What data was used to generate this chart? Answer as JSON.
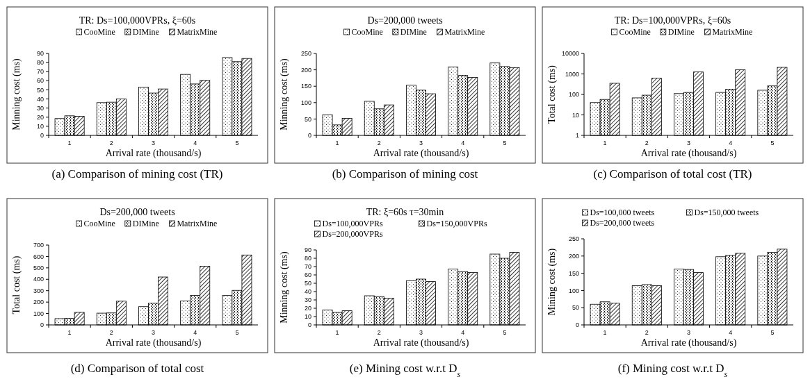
{
  "chart_data": [
    {
      "type": "bar",
      "title": "TR: Ds=100,000VPRs,  ξ=60s",
      "xlabel": "Arrival rate (thousand/s)",
      "ylabel": "Minning cost (ms)",
      "categories": [
        "1",
        "2",
        "3",
        "4",
        "5"
      ],
      "legend": "top",
      "ylim": [
        0,
        90
      ],
      "yticks": [
        0,
        10,
        20,
        30,
        40,
        50,
        60,
        70,
        80,
        90
      ],
      "annotations": [
        "(a) Comparison of mining cost (TR)"
      ],
      "series": [
        {
          "name": "CooMine",
          "color": "#000000",
          "values": [
            18.5,
            36,
            53,
            67,
            85.5
          ]
        },
        {
          "name": "DIMine",
          "color": "#000000",
          "values": [
            21.5,
            36.5,
            46.5,
            56.5,
            81
          ]
        },
        {
          "name": "MatrixMine",
          "color": "#000000",
          "values": [
            21,
            40,
            51,
            60.5,
            84.5
          ]
        }
      ]
    },
    {
      "type": "bar",
      "title": "Ds=200,000 tweets",
      "xlabel": "Arrival rate (thousand/s)",
      "ylabel": "Minning cost (ms)",
      "categories": [
        "1",
        "2",
        "3",
        "4",
        "5"
      ],
      "legend": "top",
      "ylim": [
        0,
        250
      ],
      "yticks": [
        0,
        50,
        100,
        150,
        200,
        250
      ],
      "annotations": [
        "(b) Comparison of mining cost"
      ],
      "series": [
        {
          "name": "CooMine",
          "color": "#000000",
          "values": [
            63,
            104,
            153,
            209,
            221
          ]
        },
        {
          "name": "DIMine",
          "color": "#000000",
          "values": [
            32,
            81,
            138,
            183,
            210
          ]
        },
        {
          "name": "MatrixMine",
          "color": "#000000",
          "values": [
            52,
            93,
            127,
            177,
            207
          ]
        }
      ]
    },
    {
      "type": "bar",
      "title": "TR: Ds=100,000VPRs,  ξ=60s",
      "xlabel": "Arrival rate (thousand/s)",
      "ylabel": "Total cost (ms)",
      "categories": [
        "1",
        "2",
        "3",
        "4",
        "5"
      ],
      "legend": "top",
      "log": true,
      "ylim": [
        1,
        10000
      ],
      "yticks": [
        1,
        10,
        100,
        1000,
        10000
      ],
      "annotations": [
        "(c) Comparison of total cost (TR)"
      ],
      "series": [
        {
          "name": "CooMine",
          "color": "#000000",
          "values": [
            40,
            68,
            110,
            125,
            160
          ]
        },
        {
          "name": "DIMine",
          "color": "#000000",
          "values": [
            57,
            92,
            125,
            180,
            260
          ]
        },
        {
          "name": "MatrixMine",
          "color": "#000000",
          "values": [
            350,
            620,
            1250,
            1600,
            2100
          ]
        }
      ]
    },
    {
      "type": "bar",
      "title": "Ds=200,000 tweets",
      "xlabel": "Arrival rate (thousand/s)",
      "ylabel": "Total cost (ms)",
      "categories": [
        "1",
        "2",
        "3",
        "4",
        "5"
      ],
      "legend": "top",
      "ylim": [
        0,
        700
      ],
      "yticks": [
        0,
        100,
        200,
        300,
        400,
        500,
        600,
        700
      ],
      "annotations": [
        "(d) Comparison of total cost"
      ],
      "series": [
        {
          "name": "CooMine",
          "color": "#000000",
          "values": [
            55,
            103,
            160,
            210,
            258
          ]
        },
        {
          "name": "DIMine",
          "color": "#000000",
          "values": [
            58,
            105,
            190,
            258,
            303
          ]
        },
        {
          "name": "MatrixMine",
          "color": "#000000",
          "values": [
            110,
            208,
            420,
            515,
            613
          ]
        }
      ]
    },
    {
      "type": "bar",
      "title": "TR:  ξ=60s   τ=30min",
      "xlabel": "Arrival rate (thousand/s)",
      "ylabel": "Minning cost  (ms)",
      "categories": [
        "1",
        "2",
        "3",
        "4",
        "5"
      ],
      "legend": "top",
      "ylim": [
        0,
        90
      ],
      "yticks": [
        0,
        10,
        20,
        30,
        40,
        50,
        60,
        70,
        80,
        90
      ],
      "annotations": [
        "(e) Mining cost w.r.t D$_{s}$"
      ],
      "series": [
        {
          "name": "Ds=100,000VPRs",
          "color": "#000000",
          "values": [
            18,
            35,
            53,
            67,
            85
          ]
        },
        {
          "name": "Ds=150,000VPRs",
          "color": "#000000",
          "values": [
            15,
            34,
            55,
            64,
            80
          ]
        },
        {
          "name": "Ds=200,000VPRs",
          "color": "#000000",
          "values": [
            17,
            32,
            52,
            63,
            87
          ]
        }
      ]
    },
    {
      "type": "bar",
      "xlabel": "Arrival rate (thousand/s)",
      "ylabel": "Mining cost  (ms)",
      "categories": [
        "1",
        "2",
        "3",
        "4",
        "5"
      ],
      "legend": "top",
      "ylim": [
        0,
        250
      ],
      "yticks": [
        0,
        50,
        100,
        150,
        200,
        250
      ],
      "annotations": [
        "(f) Mining cost w.r.t D$_{s}$"
      ],
      "series": [
        {
          "name": "Ds=100,000 tweets",
          "color": "#000000",
          "values": [
            60,
            114,
            162,
            198,
            200
          ]
        },
        {
          "name": "Ds=150,000 tweets",
          "color": "#000000",
          "values": [
            67,
            117,
            161,
            202,
            211
          ]
        },
        {
          "name": "Ds=200,000 tweets",
          "color": "#000000",
          "values": [
            63,
            114,
            152,
            208,
            220
          ]
        }
      ]
    }
  ]
}
